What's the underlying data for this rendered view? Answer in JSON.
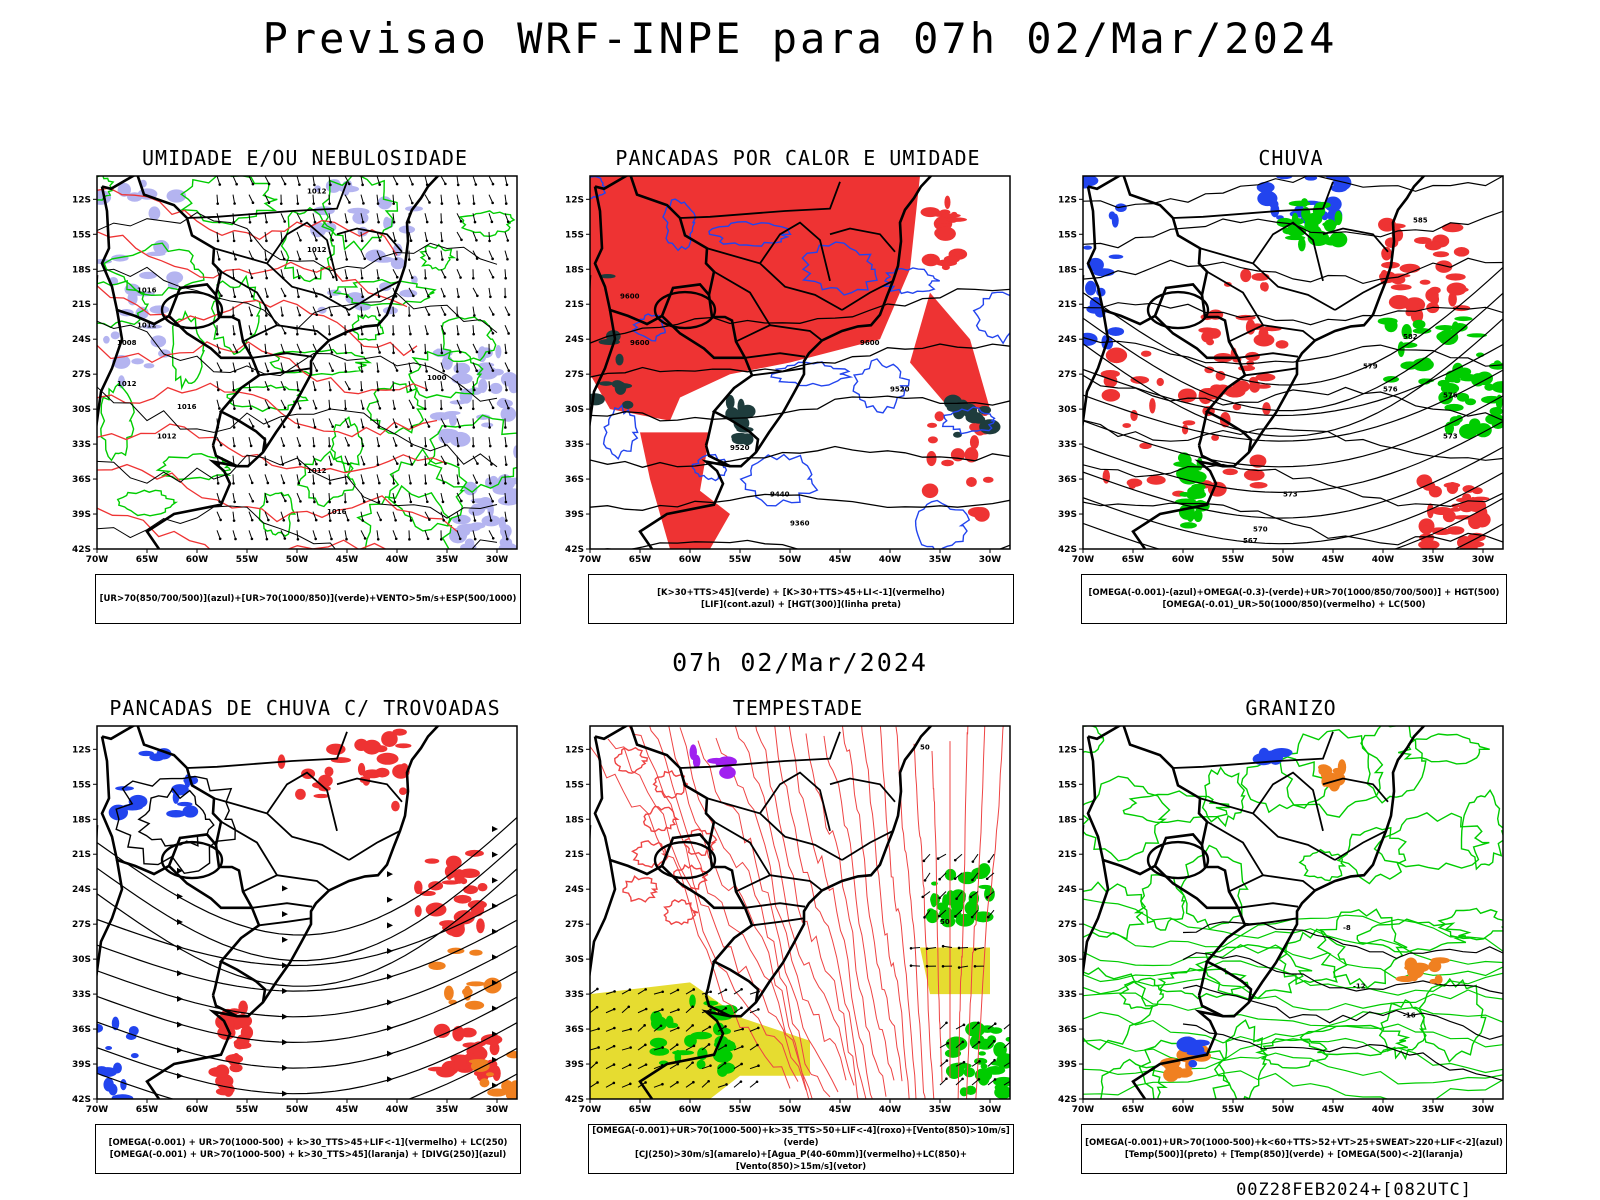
{
  "page": {
    "title": "Previsao WRF-INPE  para 07h 02/Mar/2024",
    "mid_date": "07h 02/Mar/2024",
    "footer": "00Z28FEB2024+[082UTC]"
  },
  "axes": {
    "lat_labels": [
      "12S",
      "15S",
      "18S",
      "21S",
      "24S",
      "27S",
      "30S",
      "33S",
      "36S",
      "39S",
      "42S"
    ],
    "lon_labels": [
      "70W",
      "65W",
      "60W",
      "55W",
      "50W",
      "45W",
      "40W",
      "35W",
      "30W"
    ]
  },
  "panels": [
    {
      "id": "umidade",
      "title": "UMIDADE E/OU NEBULOSIDADE",
      "legend": [
        "[UR>70(850/700/500)](azul)+[UR>70(1000/850)](verde)+VENTO>5m/s+ESP(500/1000)"
      ],
      "contour_labels": [
        "1012",
        "1012",
        "1016",
        "1012",
        "1008",
        "1012",
        "1016",
        "1012",
        "1012",
        "1000",
        "1016"
      ]
    },
    {
      "id": "pancadas",
      "title": "PANCADAS POR CALOR E UMIDADE",
      "legend": [
        "[K>30+TTS>45](verde) + [K>30+TTS>45+LI<-1](vermelho)",
        "[LIF](cont.azul) + [HGT(300)](linha preta)"
      ],
      "contour_labels": [
        "9600",
        "9600",
        "9520",
        "9440",
        "9360",
        "9600",
        "9520"
      ]
    },
    {
      "id": "chuva",
      "title": "CHUVA",
      "legend": [
        "[OMEGA(-0.001)-(azul)+OMEGA(-0.3)-(verde)+UR>70(1000/850/700/500)] + HGT(500)",
        "[OMEGA(-0.01)_UR>50(1000/850)(vermelho) + LC(500)"
      ],
      "contour_labels": [
        "585",
        "582",
        "579",
        "576",
        "573",
        "570",
        "567",
        "576",
        "573"
      ]
    },
    {
      "id": "trovoadas",
      "title": "PANCADAS DE CHUVA C/ TROVOADAS",
      "legend": [
        "[OMEGA(-0.001) + UR>70(1000-500) + k>30_TTS>45+LIF<-1](vermelho) + LC(250)",
        "[OMEGA(-0.001) + UR>70(1000-500) + k>30_TTS>45](laranja) + [DIVG(250)](azul)"
      ],
      "contour_labels": []
    },
    {
      "id": "tempestade",
      "title": "TEMPESTADE",
      "legend": [
        "[OMEGA(-0.001)+UR>70(1000-500)+k>35_TTS>50+LIF<-4](roxo)+[Vento(850)>10m/s](verde)",
        "[CJ(250)>30m/s](amarelo)+[Agua_P(40-60mm)](vermelho)+LC(850)+[Vento(850)>15m/s](vetor)"
      ],
      "contour_labels": [
        "50",
        "50"
      ]
    },
    {
      "id": "granizo",
      "title": "GRANIZO",
      "legend": [
        "[OMEGA(-0.001)+UR>70(1000-500)+k<60+TTS>52+VT>25+SWEAT>220+LIF<-2](azul)",
        "[Temp(500)](preto) + [Temp(850)](verde) + [OMEGA(500)<-2](laranja)"
      ],
      "contour_labels": [
        "-8",
        "-12",
        "-16"
      ]
    }
  ],
  "colors": {
    "red": "#ee3333",
    "green": "#00cc00",
    "blue": "#2244ee",
    "lavender": "#b4b4f0",
    "yellow": "#e6dc30",
    "orange": "#f08020",
    "darkteal": "#1e3c3c",
    "purple": "#a020f0"
  }
}
